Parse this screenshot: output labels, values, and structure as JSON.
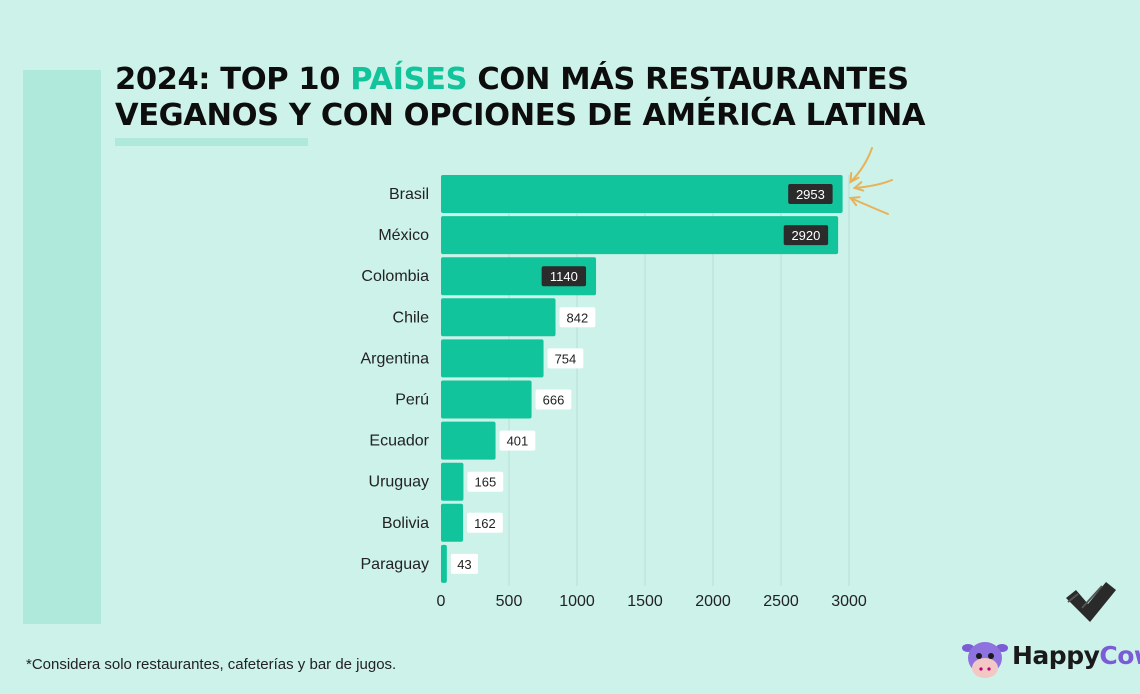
{
  "title": {
    "part1": "2024: TOP 10 ",
    "highlight": "PAÍSES",
    "part2": " CON MÁS RESTAURANTES",
    "line2": "VEGANOS Y CON OPCIONES DE AMÉRICA LATINA"
  },
  "footnote": "*Considera solo restaurantes, cafeterías y bar de jugos.",
  "logo": {
    "part1": "Happy",
    "part2": "Cow"
  },
  "colors": {
    "bar": "#12c49b",
    "label_dark_bg": "#2b2b2b",
    "label_light_bg": "#ffffff",
    "arrow": "#e8b25a",
    "gridline": "#b9ddd4",
    "background": "#ccf2ea"
  },
  "chart_data": {
    "type": "bar",
    "orientation": "horizontal",
    "categories": [
      "Brasil",
      "México",
      "Colombia",
      "Chile",
      "Argentina",
      "Perú",
      "Ecuador",
      "Uruguay",
      "Bolivia",
      "Paraguay"
    ],
    "values": [
      2953,
      2920,
      1140,
      842,
      754,
      666,
      401,
      165,
      162,
      43
    ],
    "xlim": [
      0,
      3000
    ],
    "xticks": [
      0,
      500,
      1000,
      1500,
      2000,
      2500,
      3000
    ],
    "grid": "vertical",
    "title": "",
    "xlabel": "",
    "ylabel": "",
    "annotation": "arrows pointing at Brasil bar"
  }
}
